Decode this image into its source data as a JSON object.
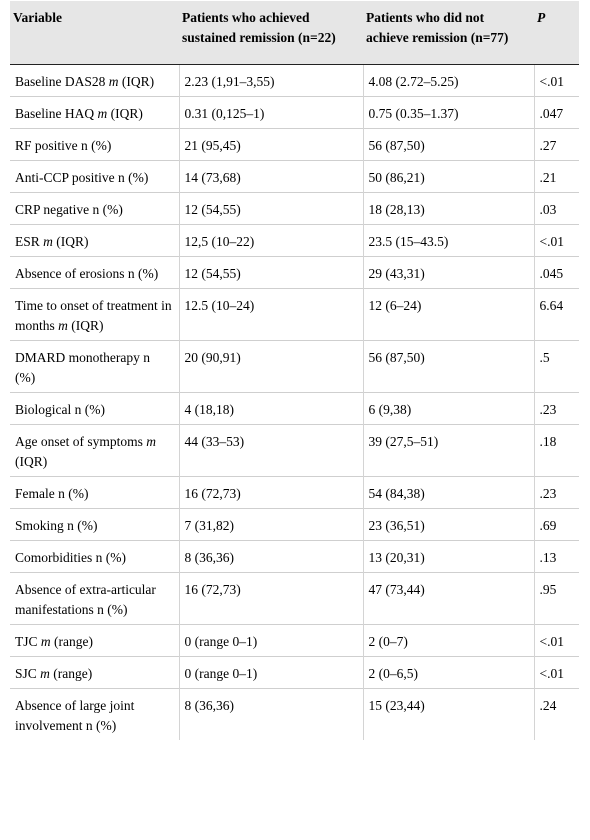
{
  "header": {
    "variable": "Variable",
    "sustained": "Patients who achieved sustained remission (n=22)",
    "not_remission": "Patients who did not achieve remission (n=77)",
    "p": "P"
  },
  "rows": [
    {
      "label_html": "Baseline DAS28 <i>m</i> (IQR)",
      "a": "2.23 (1,91–3,55)",
      "b": "4.08 (2.72–5.25)",
      "p": "<.01"
    },
    {
      "label_html": "Baseline HAQ <i>m</i> (IQR)",
      "a": "0.31 (0,125–1)",
      "b": "0.75 (0.35–1.37)",
      "p": ".047"
    },
    {
      "label_html": "RF positive n (%)",
      "a": "21 (95,45)",
      "b": "56 (87,50)",
      "p": ".27"
    },
    {
      "label_html": "Anti-CCP positive n (%)",
      "a": "14 (73,68)",
      "b": "50 (86,21)",
      "p": ".21"
    },
    {
      "label_html": "CRP negative n (%)",
      "a": "12 (54,55)",
      "b": "18 (28,13)",
      "p": ".03"
    },
    {
      "label_html": "ESR <i>m</i> (IQR)",
      "a": "12,5 (10–22)",
      "b": "23.5 (15–43.5)",
      "p": "<.01"
    },
    {
      "label_html": "Absence of erosions n (%)",
      "a": "12 (54,55)",
      "b": "29 (43,31)",
      "p": ".045"
    },
    {
      "label_html": "Time to onset of treatment in months <i>m</i> (IQR)",
      "a": "12.5 (10–24)",
      "b": "12 (6–24)",
      "p": "6.64"
    },
    {
      "label_html": "DMARD monotherapy n (%)",
      "a": "20 (90,91)",
      "b": "56 (87,50)",
      "p": ".5"
    },
    {
      "label_html": "Biological n (%)",
      "a": "4 (18,18)",
      "b": "6 (9,38)",
      "p": ".23"
    },
    {
      "label_html": "Age onset of symptoms <i>m</i> (IQR)",
      "a": "44 (33–53)",
      "b": "39 (27,5–51)",
      "p": ".18"
    },
    {
      "label_html": "Female n (%)",
      "a": "16 (72,73)",
      "b": "54 (84,38)",
      "p": ".23"
    },
    {
      "label_html": "Smoking n (%)",
      "a": "7 (31,82)",
      "b": "23 (36,51)",
      "p": ".69"
    },
    {
      "label_html": "Comorbidities n (%)",
      "a": "8 (36,36)",
      "b": "13 (20,31)",
      "p": ".13"
    },
    {
      "label_html": "Absence of extra-articular manifestations n (%)",
      "a": "16 (72,73)",
      "b": "47 (73,44)",
      "p": ".95"
    },
    {
      "label_html": "TJC <i>m</i> (range)",
      "a": "0 (range 0–1)",
      "b": "2 (0–7)",
      "p": "<.01"
    },
    {
      "label_html": "SJC <i>m</i> (range)",
      "a": "0 (range 0–1)",
      "b": "2 (0–6,5)",
      "p": "<.01"
    },
    {
      "label_html": "Absence of large joint involvement n (%)",
      "a": "8 (36,36)",
      "b": "15 (23,44)",
      "p": ".24"
    }
  ]
}
